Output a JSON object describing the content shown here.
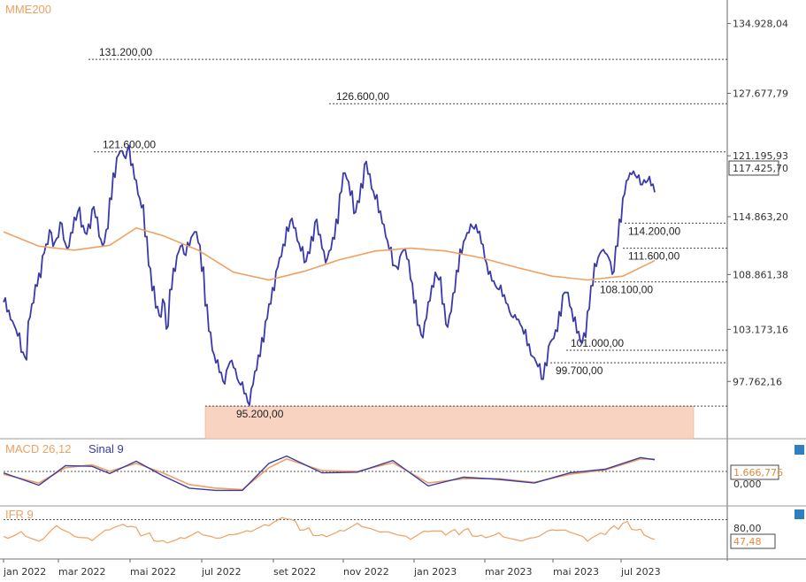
{
  "chart_data": {
    "type": "line",
    "main": {
      "legend": "MME200",
      "ylim": [
        92000,
        137000
      ],
      "y_ticks": [
        "134.928,04",
        "127.677,79",
        "121.195,93",
        "114.863,20",
        "108.861,38",
        "103.173,16",
        "97.762,16"
      ],
      "y_tick_values": [
        134928.04,
        127677.79,
        121195.93,
        114863.2,
        108861.38,
        103173.16,
        97762.16
      ],
      "last_price_label": "117.425,70",
      "last_price": 117425.7,
      "levels": [
        {
          "label": "131.200,00",
          "value": 131200
        },
        {
          "label": "126.600,00",
          "value": 126600
        },
        {
          "label": "121.600,00",
          "value": 121600
        },
        {
          "label": "114.200,00",
          "value": 114200
        },
        {
          "label": "111.600,00",
          "value": 111600
        },
        {
          "label": "108.100,00",
          "value": 108100
        },
        {
          "label": "101.000,00",
          "value": 101000
        },
        {
          "label": "99.700,00",
          "value": 99700
        },
        {
          "label": "95.200,00",
          "value": 95200
        }
      ],
      "price_series": [
        [
          0,
          106000
        ],
        [
          4,
          105000
        ],
        [
          8,
          104200
        ],
        [
          12,
          103600
        ],
        [
          16,
          102500
        ],
        [
          20,
          100800
        ],
        [
          24,
          100300
        ],
        [
          28,
          104000
        ],
        [
          32,
          105800
        ],
        [
          36,
          107800
        ],
        [
          40,
          109000
        ],
        [
          44,
          110800
        ],
        [
          48,
          112000
        ],
        [
          52,
          113500
        ],
        [
          56,
          111800
        ],
        [
          60,
          112600
        ],
        [
          64,
          114300
        ],
        [
          68,
          112500
        ],
        [
          72,
          111500
        ],
        [
          76,
          113200
        ],
        [
          80,
          114800
        ],
        [
          84,
          115400
        ],
        [
          88,
          113800
        ],
        [
          92,
          113200
        ],
        [
          96,
          114100
        ],
        [
          100,
          115600
        ],
        [
          104,
          114800
        ],
        [
          108,
          112800
        ],
        [
          112,
          111800
        ],
        [
          116,
          113500
        ],
        [
          120,
          116800
        ],
        [
          124,
          119400
        ],
        [
          128,
          121000
        ],
        [
          132,
          121700
        ],
        [
          136,
          121200
        ],
        [
          140,
          121800
        ],
        [
          144,
          120200
        ],
        [
          148,
          118800
        ],
        [
          152,
          117200
        ],
        [
          156,
          115800
        ],
        [
          160,
          112800
        ],
        [
          164,
          109800
        ],
        [
          168,
          107200
        ],
        [
          172,
          105400
        ],
        [
          176,
          104600
        ],
        [
          180,
          106300
        ],
        [
          184,
          103200
        ],
        [
          188,
          107300
        ],
        [
          192,
          109500
        ],
        [
          196,
          110800
        ],
        [
          200,
          111800
        ],
        [
          204,
          111000
        ],
        [
          208,
          112200
        ],
        [
          212,
          112700
        ],
        [
          216,
          113300
        ],
        [
          220,
          112200
        ],
        [
          224,
          109200
        ],
        [
          228,
          105600
        ],
        [
          232,
          103000
        ],
        [
          236,
          101000
        ],
        [
          240,
          99700
        ],
        [
          244,
          98700
        ],
        [
          248,
          97800
        ],
        [
          252,
          98900
        ],
        [
          256,
          99800
        ],
        [
          260,
          99200
        ],
        [
          264,
          98100
        ],
        [
          268,
          97400
        ],
        [
          272,
          96500
        ],
        [
          276,
          95600
        ],
        [
          280,
          97000
        ],
        [
          284,
          98800
        ],
        [
          288,
          100500
        ],
        [
          292,
          102300
        ],
        [
          296,
          104000
        ],
        [
          300,
          105800
        ],
        [
          304,
          107500
        ],
        [
          308,
          109200
        ],
        [
          312,
          110600
        ],
        [
          316,
          112000
        ],
        [
          320,
          113800
        ],
        [
          324,
          114400
        ],
        [
          328,
          113700
        ],
        [
          332,
          112400
        ],
        [
          336,
          111300
        ],
        [
          340,
          110100
        ],
        [
          344,
          111200
        ],
        [
          348,
          112800
        ],
        [
          352,
          114300
        ],
        [
          356,
          113000
        ],
        [
          360,
          111600
        ],
        [
          364,
          110100
        ],
        [
          368,
          111300
        ],
        [
          372,
          112700
        ],
        [
          376,
          114600
        ],
        [
          380,
          117200
        ],
        [
          384,
          119400
        ],
        [
          388,
          118800
        ],
        [
          392,
          117100
        ],
        [
          396,
          115200
        ],
        [
          400,
          116500
        ],
        [
          404,
          118300
        ],
        [
          408,
          120300
        ],
        [
          412,
          119300
        ],
        [
          416,
          117800
        ],
        [
          420,
          116700
        ],
        [
          424,
          115300
        ],
        [
          428,
          114200
        ],
        [
          432,
          112800
        ],
        [
          436,
          111400
        ],
        [
          440,
          109800
        ],
        [
          444,
          109700
        ],
        [
          448,
          110700
        ],
        [
          452,
          111400
        ],
        [
          456,
          110500
        ],
        [
          460,
          108400
        ],
        [
          464,
          105900
        ],
        [
          468,
          103600
        ],
        [
          472,
          102600
        ],
        [
          476,
          103900
        ],
        [
          480,
          106000
        ],
        [
          484,
          107700
        ],
        [
          488,
          109100
        ],
        [
          492,
          108300
        ],
        [
          496,
          105800
        ],
        [
          500,
          103700
        ],
        [
          504,
          104600
        ],
        [
          508,
          106900
        ],
        [
          512,
          109300
        ],
        [
          516,
          111500
        ],
        [
          520,
          112300
        ],
        [
          524,
          113200
        ],
        [
          528,
          114100
        ],
        [
          532,
          113600
        ],
        [
          536,
          113200
        ],
        [
          540,
          112100
        ],
        [
          544,
          110500
        ],
        [
          548,
          108900
        ],
        [
          552,
          108200
        ],
        [
          556,
          107700
        ],
        [
          560,
          107300
        ],
        [
          564,
          106600
        ],
        [
          568,
          105900
        ],
        [
          572,
          105000
        ],
        [
          576,
          104400
        ],
        [
          580,
          104200
        ],
        [
          584,
          103700
        ],
        [
          588,
          102700
        ],
        [
          592,
          101500
        ],
        [
          596,
          100500
        ],
        [
          600,
          100200
        ],
        [
          604,
          99300
        ],
        [
          608,
          98000
        ],
        [
          612,
          99700
        ],
        [
          616,
          101400
        ],
        [
          620,
          102100
        ],
        [
          624,
          103100
        ],
        [
          628,
          105000
        ],
        [
          632,
          106700
        ],
        [
          636,
          107000
        ],
        [
          640,
          105600
        ],
        [
          644,
          104000
        ],
        [
          648,
          102800
        ],
        [
          652,
          101900
        ],
        [
          656,
          102800
        ],
        [
          660,
          105000
        ],
        [
          664,
          107700
        ],
        [
          668,
          110000
        ],
        [
          672,
          110600
        ],
        [
          676,
          111300
        ],
        [
          680,
          111100
        ],
        [
          684,
          110600
        ],
        [
          688,
          108900
        ],
        [
          692,
          111800
        ],
        [
          696,
          114600
        ],
        [
          700,
          116800
        ],
        [
          704,
          118600
        ],
        [
          708,
          119400
        ],
        [
          712,
          119600
        ],
        [
          716,
          118900
        ],
        [
          720,
          118200
        ],
        [
          724,
          118700
        ],
        [
          728,
          118600
        ],
        [
          732,
          118100
        ],
        [
          736,
          117400
        ]
      ],
      "mme200_series": [
        [
          0,
          113300
        ],
        [
          40,
          111800
        ],
        [
          80,
          111400
        ],
        [
          120,
          111900
        ],
        [
          150,
          113700
        ],
        [
          180,
          112900
        ],
        [
          220,
          111400
        ],
        [
          260,
          109100
        ],
        [
          300,
          108300
        ],
        [
          340,
          109200
        ],
        [
          380,
          110400
        ],
        [
          420,
          111300
        ],
        [
          460,
          111600
        ],
        [
          500,
          111300
        ],
        [
          540,
          110600
        ],
        [
          580,
          109600
        ],
        [
          620,
          108700
        ],
        [
          660,
          108300
        ],
        [
          700,
          108700
        ],
        [
          736,
          110300
        ]
      ]
    },
    "macd": {
      "legend_name": "MACD 26,12",
      "legend_signal": "Sinal 9",
      "value_label": "1.666,776",
      "zero_label": "0,000",
      "macd_series": [
        [
          0,
          -200
        ],
        [
          40,
          -1900
        ],
        [
          70,
          800
        ],
        [
          100,
          700
        ],
        [
          120,
          -300
        ],
        [
          150,
          1400
        ],
        [
          180,
          -600
        ],
        [
          210,
          -2300
        ],
        [
          240,
          -2600
        ],
        [
          270,
          -2600
        ],
        [
          300,
          1100
        ],
        [
          320,
          2100
        ],
        [
          360,
          -200
        ],
        [
          400,
          -100
        ],
        [
          440,
          1500
        ],
        [
          480,
          -2000
        ],
        [
          520,
          -800
        ],
        [
          560,
          -1100
        ],
        [
          600,
          -1600
        ],
        [
          640,
          -200
        ],
        [
          680,
          300
        ],
        [
          720,
          1900
        ],
        [
          736,
          1600
        ]
      ],
      "signal_series": [
        [
          0,
          -400
        ],
        [
          40,
          -1600
        ],
        [
          70,
          500
        ],
        [
          100,
          900
        ],
        [
          120,
          0
        ],
        [
          150,
          1100
        ],
        [
          180,
          -200
        ],
        [
          210,
          -1800
        ],
        [
          240,
          -2300
        ],
        [
          270,
          -2500
        ],
        [
          300,
          500
        ],
        [
          320,
          1700
        ],
        [
          360,
          100
        ],
        [
          400,
          0
        ],
        [
          440,
          1200
        ],
        [
          480,
          -1600
        ],
        [
          520,
          -1000
        ],
        [
          560,
          -1000
        ],
        [
          600,
          -1500
        ],
        [
          640,
          -400
        ],
        [
          680,
          200
        ],
        [
          720,
          1700
        ],
        [
          736,
          1700
        ]
      ]
    },
    "ifr": {
      "legend": "IFR 9",
      "upper_label": "80,00",
      "value_label": "47,48",
      "value": 47.48,
      "series": [
        [
          0,
          52
        ],
        [
          20,
          60
        ],
        [
          40,
          44
        ],
        [
          60,
          70
        ],
        [
          80,
          52
        ],
        [
          100,
          45
        ],
        [
          120,
          63
        ],
        [
          140,
          68
        ],
        [
          160,
          55
        ],
        [
          180,
          45
        ],
        [
          200,
          50
        ],
        [
          220,
          60
        ],
        [
          240,
          49
        ],
        [
          260,
          55
        ],
        [
          280,
          60
        ],
        [
          300,
          70
        ],
        [
          320,
          81
        ],
        [
          340,
          63
        ],
        [
          360,
          55
        ],
        [
          380,
          62
        ],
        [
          400,
          74
        ],
        [
          420,
          62
        ],
        [
          440,
          57
        ],
        [
          460,
          47
        ],
        [
          480,
          60
        ],
        [
          500,
          54
        ],
        [
          520,
          62
        ],
        [
          540,
          54
        ],
        [
          560,
          58
        ],
        [
          580,
          46
        ],
        [
          600,
          50
        ],
        [
          620,
          63
        ],
        [
          640,
          59
        ],
        [
          660,
          44
        ],
        [
          680,
          55
        ],
        [
          700,
          74
        ],
        [
          720,
          64
        ],
        [
          736,
          47
        ]
      ]
    },
    "x_ticks": [
      "jan 2022",
      "mar 2022",
      "mai 2022",
      "jul 2022",
      "set 2022",
      "nov 2022",
      "jan 2023",
      "mar 2023",
      "mai 2023",
      "jul 2023"
    ]
  },
  "colors": {
    "price": "#3a3aa8",
    "mme200": "#f0a060",
    "macd": "#3a3aa8",
    "signal": "#f0a060",
    "ifr": "#f0a060",
    "support_band": "#f9d3c2"
  }
}
